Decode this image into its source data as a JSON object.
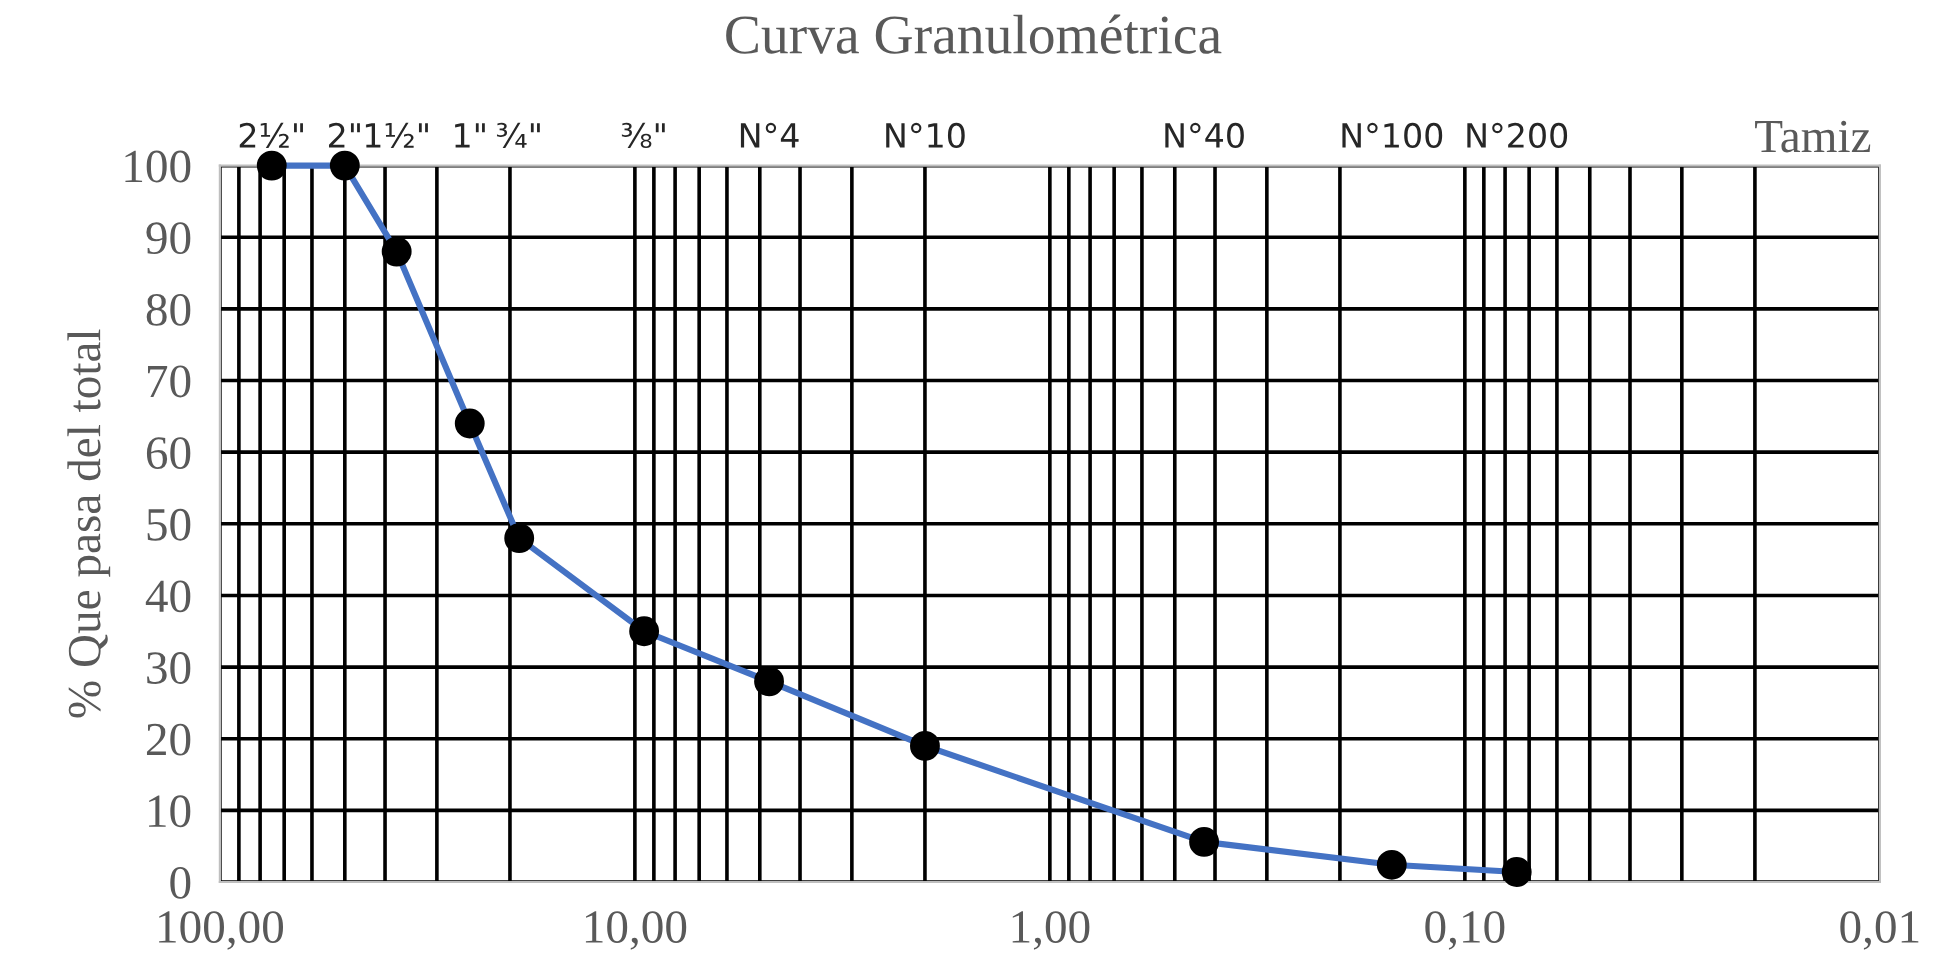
{
  "chart_data": {
    "type": "line",
    "title": "Curva Granulométrica",
    "ylabel": "% Que pasa del total",
    "x2label": "Tamiz",
    "log": "x",
    "xlim": [
      100,
      0.01
    ],
    "ylim": [
      0,
      100
    ],
    "xticks": [
      {
        "value": 100,
        "label": "100,00"
      },
      {
        "value": 10,
        "label": "10,00"
      },
      {
        "value": 1,
        "label": "1,00"
      },
      {
        "value": 0.1,
        "label": "0,10"
      },
      {
        "value": 0.01,
        "label": "0,01"
      }
    ],
    "yticks": [
      0,
      10,
      20,
      30,
      40,
      50,
      60,
      70,
      80,
      90,
      100
    ],
    "annotations": [
      "2½\"",
      "2\"",
      "1½\"",
      "1\"",
      "¾\"",
      "⅜\"",
      "N°4",
      "N°10",
      "N°40",
      "N°100",
      "N°200"
    ],
    "grid": true,
    "marker": "circle",
    "line_style": "solid",
    "series": [
      {
        "color": "#4472c4",
        "x": [
          75,
          50,
          37.5,
          25,
          19,
          9.5,
          4.75,
          2,
          0.425,
          0.15,
          0.075
        ],
        "values": [
          100,
          100,
          88,
          64,
          48,
          35,
          28,
          19,
          5.6,
          2.4,
          1.4
        ]
      }
    ]
  }
}
